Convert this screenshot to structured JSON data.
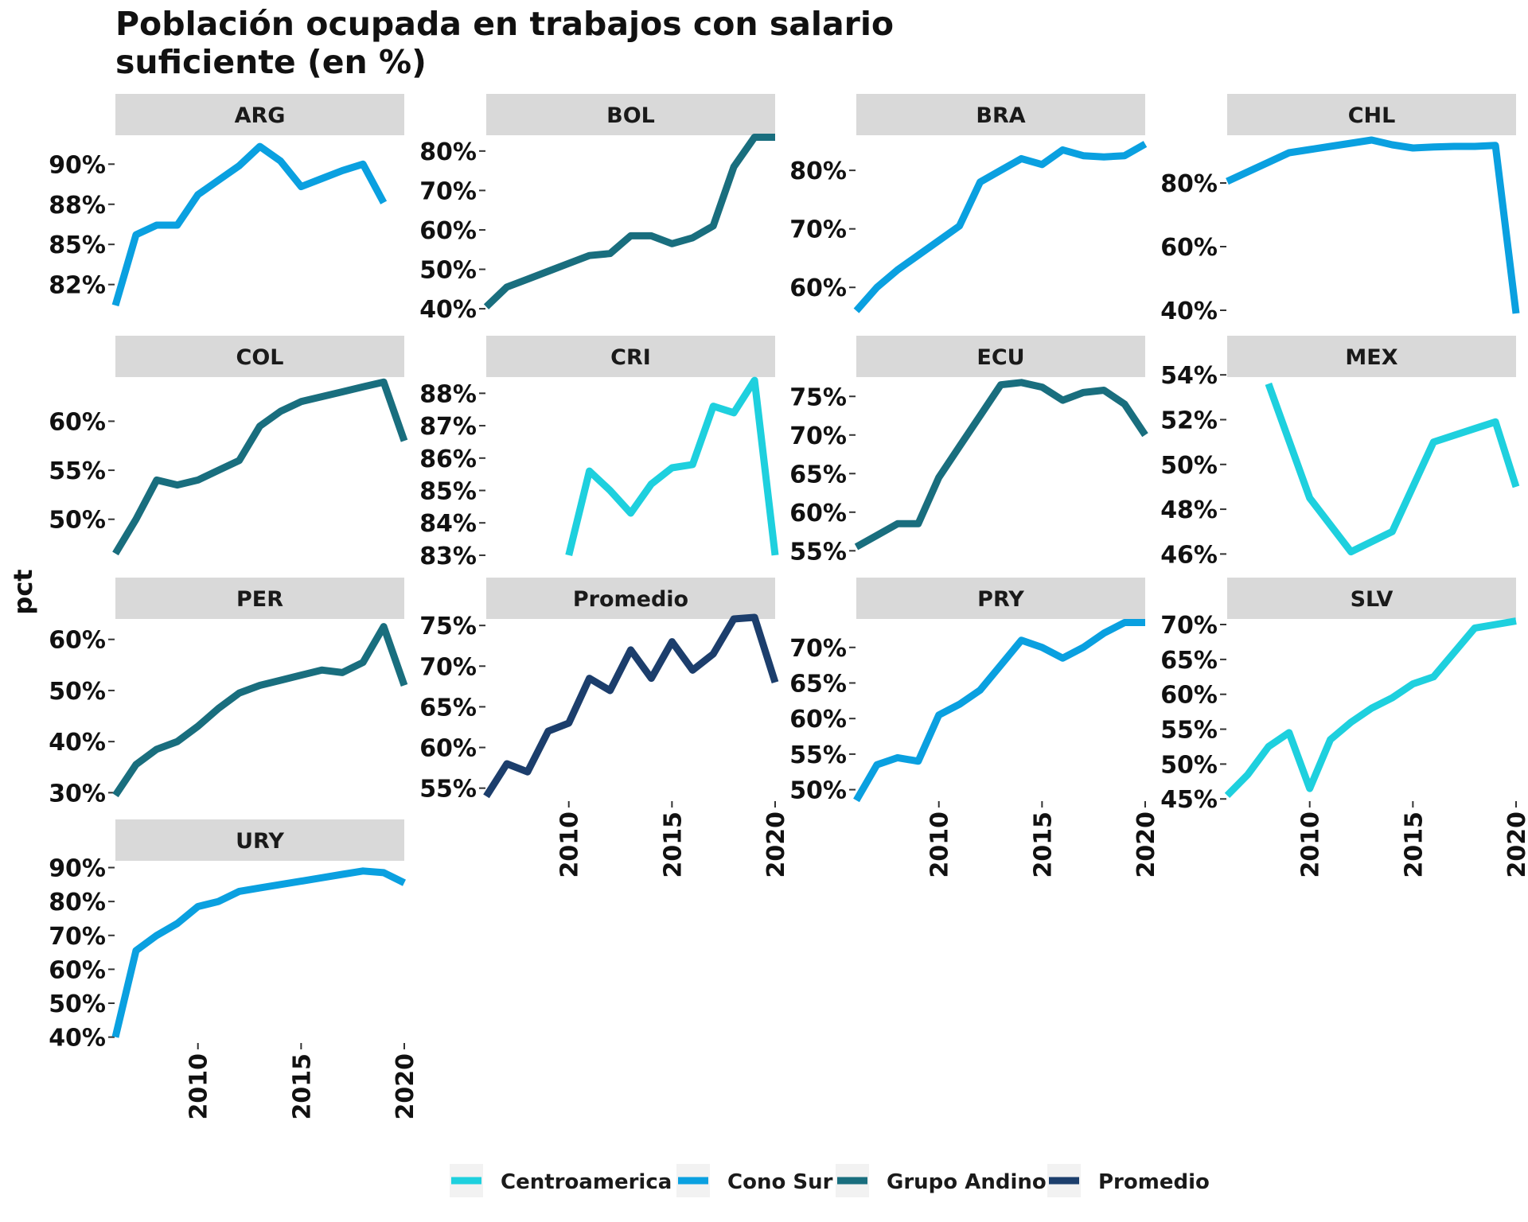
{
  "title_lines": [
    "Población ocupada en trabajos con salario",
    "suficiente (en %)"
  ],
  "chart_data": {
    "type": "line",
    "title": "Población ocupada en trabajos con salario suficiente (en %)",
    "ylabel": "pct",
    "xlabel": "",
    "x_ticks": [
      2010,
      2015,
      2020
    ],
    "xlim": [
      2006,
      2020
    ],
    "group_colors": {
      "Centroamerica": "#1ED0DE",
      "Cono Sur": "#0AA0E0",
      "Grupo Andino": "#196E7E",
      "Promedio": "#1C3E6C"
    },
    "legend": [
      {
        "label": "Centroamerica",
        "color": "#1ED0DE"
      },
      {
        "label": "Cono Sur",
        "color": "#0AA0E0"
      },
      {
        "label": "Grupo Andino",
        "color": "#196E7E"
      },
      {
        "label": "Promedio",
        "color": "#1C3E6C"
      }
    ],
    "legend_position": "bottom",
    "panels": [
      {
        "name": "ARG",
        "group": "Cono Sur",
        "ylim": [
          80.5,
          91.8
        ],
        "yticks": [
          {
            "v": 82.5,
            "label": "82%"
          },
          {
            "v": 85,
            "label": "85%"
          },
          {
            "v": 87.5,
            "label": "88%"
          },
          {
            "v": 90,
            "label": "90%"
          }
        ],
        "x": [
          2006,
          2007,
          2008,
          2009,
          2010,
          2011,
          2012,
          2013,
          2014,
          2015,
          2016,
          2017,
          2018,
          2019
        ],
        "y": [
          81.2,
          85.6,
          86.2,
          86.2,
          88.1,
          89.0,
          89.9,
          91.1,
          90.2,
          88.6,
          89.1,
          89.6,
          90.0,
          87.6
        ]
      },
      {
        "name": "BOL",
        "group": "Grupo Andino",
        "ylim": [
          38,
          84
        ],
        "yticks": [
          {
            "v": 40,
            "label": "40%"
          },
          {
            "v": 50,
            "label": "50%"
          },
          {
            "v": 60,
            "label": "60%"
          },
          {
            "v": 70,
            "label": "70%"
          },
          {
            "v": 80,
            "label": "80%"
          }
        ],
        "x": [
          2006,
          2007,
          2008,
          2009,
          2010,
          2011,
          2012,
          2013,
          2014,
          2015,
          2016,
          2017,
          2018,
          2019,
          2020
        ],
        "y": [
          40.5,
          45.5,
          47.5,
          49.5,
          51.5,
          53.5,
          54.0,
          58.5,
          58.5,
          56.5,
          58.0,
          61.0,
          76.0,
          83.5,
          83.5
        ]
      },
      {
        "name": "BRA",
        "group": "Cono Sur",
        "ylim": [
          55,
          86
        ],
        "yticks": [
          {
            "v": 60,
            "label": "60%"
          },
          {
            "v": 70,
            "label": "70%"
          },
          {
            "v": 80,
            "label": "80%"
          }
        ],
        "x": [
          2006,
          2007,
          2008,
          2009,
          2010,
          2011,
          2012,
          2013,
          2014,
          2015,
          2016,
          2017,
          2018,
          2019,
          2020
        ],
        "y": [
          56.0,
          60.0,
          63.0,
          65.5,
          68.0,
          70.5,
          78.0,
          80.0,
          82.0,
          81.0,
          83.5,
          82.5,
          82.3,
          82.5,
          84.5
        ]
      },
      {
        "name": "CHL",
        "group": "Cono Sur",
        "ylim": [
          38,
          95
        ],
        "yticks": [
          {
            "v": 40,
            "label": "40%"
          },
          {
            "v": 60,
            "label": "60%"
          },
          {
            "v": 80,
            "label": "80%"
          }
        ],
        "x": [
          2006,
          2007,
          2008,
          2009,
          2010,
          2011,
          2012,
          2013,
          2014,
          2015,
          2016,
          2017,
          2018,
          2019,
          2020
        ],
        "y": [
          80.5,
          83.5,
          86.5,
          89.5,
          90.5,
          91.5,
          92.5,
          93.5,
          92.0,
          91.0,
          91.3,
          91.5,
          91.5,
          91.8,
          39.0
        ]
      },
      {
        "name": "COL",
        "group": "Grupo Andino",
        "ylim": [
          46,
          64.5
        ],
        "yticks": [
          {
            "v": 50,
            "label": "50%"
          },
          {
            "v": 55,
            "label": "55%"
          },
          {
            "v": 60,
            "label": "60%"
          }
        ],
        "x": [
          2006,
          2007,
          2008,
          2009,
          2010,
          2011,
          2012,
          2013,
          2014,
          2015,
          2016,
          2017,
          2018,
          2019,
          2020
        ],
        "y": [
          46.5,
          50.0,
          54.0,
          53.5,
          54.0,
          55.0,
          56.0,
          59.5,
          61.0,
          62.0,
          62.5,
          63.0,
          63.5,
          64.0,
          58.0
        ]
      },
      {
        "name": "CRI",
        "group": "Centroamerica",
        "ylim": [
          82.9,
          88.5
        ],
        "yticks": [
          {
            "v": 83,
            "label": "83%"
          },
          {
            "v": 84,
            "label": "84%"
          },
          {
            "v": 85,
            "label": "85%"
          },
          {
            "v": 86,
            "label": "86%"
          },
          {
            "v": 87,
            "label": "87%"
          },
          {
            "v": 88,
            "label": "88%"
          }
        ],
        "x": [
          2010,
          2011,
          2012,
          2013,
          2014,
          2015,
          2016,
          2017,
          2018,
          2019,
          2020
        ],
        "y": [
          83.0,
          85.6,
          85.0,
          84.3,
          85.2,
          85.7,
          85.8,
          87.6,
          87.4,
          88.4,
          83.0
        ]
      },
      {
        "name": "ECU",
        "group": "Grupo Andino",
        "ylim": [
          54,
          77.5
        ],
        "yticks": [
          {
            "v": 55,
            "label": "55%"
          },
          {
            "v": 60,
            "label": "60%"
          },
          {
            "v": 65,
            "label": "65%"
          },
          {
            "v": 70,
            "label": "70%"
          },
          {
            "v": 75,
            "label": "75%"
          }
        ],
        "x": [
          2006,
          2007,
          2008,
          2009,
          2010,
          2011,
          2012,
          2013,
          2014,
          2015,
          2016,
          2017,
          2018,
          2019,
          2020
        ],
        "y": [
          55.5,
          57.0,
          58.5,
          58.5,
          64.5,
          68.5,
          72.5,
          76.5,
          76.8,
          76.2,
          74.5,
          75.5,
          75.8,
          74.0,
          70.0
        ]
      },
      {
        "name": "MEX",
        "group": "Centroamerica",
        "ylim": [
          45.8,
          53.9
        ],
        "yticks": [
          {
            "v": 46,
            "label": "46%"
          },
          {
            "v": 48,
            "label": "48%"
          },
          {
            "v": 50,
            "label": "50%"
          },
          {
            "v": 52,
            "label": "52%"
          },
          {
            "v": 54,
            "label": "54%"
          }
        ],
        "x": [
          2008,
          2010,
          2012,
          2014,
          2016,
          2018,
          2019,
          2020
        ],
        "y": [
          53.6,
          48.5,
          46.1,
          47.0,
          51.0,
          51.6,
          51.9,
          49.0
        ]
      },
      {
        "name": "PER",
        "group": "Grupo Andino",
        "ylim": [
          28.5,
          64
        ],
        "yticks": [
          {
            "v": 30,
            "label": "30%"
          },
          {
            "v": 40,
            "label": "40%"
          },
          {
            "v": 50,
            "label": "50%"
          },
          {
            "v": 60,
            "label": "60%"
          }
        ],
        "x": [
          2006,
          2007,
          2008,
          2009,
          2010,
          2011,
          2012,
          2013,
          2014,
          2015,
          2016,
          2017,
          2018,
          2019,
          2020
        ],
        "y": [
          29.5,
          35.5,
          38.5,
          40.0,
          43.0,
          46.5,
          49.5,
          51.0,
          52.0,
          53.0,
          54.0,
          53.5,
          55.5,
          62.5,
          51.0
        ]
      },
      {
        "name": "Promedio",
        "group": "Promedio",
        "ylim": [
          53.5,
          75.8
        ],
        "yticks": [
          {
            "v": 55,
            "label": "55%"
          },
          {
            "v": 60,
            "label": "60%"
          },
          {
            "v": 65,
            "label": "65%"
          },
          {
            "v": 70,
            "label": "70%"
          },
          {
            "v": 75,
            "label": "75%"
          }
        ],
        "x": [
          2006,
          2007,
          2008,
          2009,
          2010,
          2011,
          2012,
          2013,
          2014,
          2015,
          2016,
          2017,
          2018,
          2019,
          2020
        ],
        "y": [
          54.0,
          58.0,
          57.0,
          62.0,
          63.0,
          68.5,
          67.0,
          72.0,
          68.5,
          73.0,
          69.5,
          71.5,
          75.8,
          76.0,
          68.0
        ]
      },
      {
        "name": "PRY",
        "group": "Cono Sur",
        "ylim": [
          48.5,
          74
        ],
        "yticks": [
          {
            "v": 50,
            "label": "50%"
          },
          {
            "v": 55,
            "label": "55%"
          },
          {
            "v": 60,
            "label": "60%"
          },
          {
            "v": 65,
            "label": "65%"
          },
          {
            "v": 70,
            "label": "70%"
          }
        ],
        "x": [
          2006,
          2007,
          2008,
          2009,
          2010,
          2011,
          2012,
          2013,
          2014,
          2015,
          2016,
          2017,
          2018,
          2019,
          2020
        ],
        "y": [
          48.5,
          53.5,
          54.5,
          54.0,
          60.5,
          62.0,
          64.0,
          67.5,
          71.0,
          70.0,
          68.5,
          70.0,
          72.0,
          73.5,
          73.5
        ]
      },
      {
        "name": "SLV",
        "group": "Centroamerica",
        "ylim": [
          44.8,
          70.8
        ],
        "yticks": [
          {
            "v": 45,
            "label": "45%"
          },
          {
            "v": 50,
            "label": "50%"
          },
          {
            "v": 55,
            "label": "55%"
          },
          {
            "v": 60,
            "label": "60%"
          },
          {
            "v": 65,
            "label": "65%"
          },
          {
            "v": 70,
            "label": "70%"
          }
        ],
        "x": [
          2006,
          2007,
          2008,
          2009,
          2010,
          2011,
          2012,
          2013,
          2014,
          2015,
          2016,
          2017,
          2018,
          2019,
          2020
        ],
        "y": [
          45.5,
          48.5,
          52.5,
          54.5,
          46.5,
          53.5,
          56.0,
          58.0,
          59.5,
          61.5,
          62.5,
          66.0,
          69.5,
          70.0,
          70.5
        ]
      },
      {
        "name": "URY",
        "group": "Cono Sur",
        "ylim": [
          38.5,
          92
        ],
        "yticks": [
          {
            "v": 40,
            "label": "40%"
          },
          {
            "v": 50,
            "label": "50%"
          },
          {
            "v": 60,
            "label": "60%"
          },
          {
            "v": 70,
            "label": "70%"
          },
          {
            "v": 80,
            "label": "80%"
          },
          {
            "v": 90,
            "label": "90%"
          }
        ],
        "x": [
          2006,
          2007,
          2008,
          2009,
          2010,
          2011,
          2012,
          2013,
          2014,
          2015,
          2016,
          2017,
          2018,
          2019,
          2020
        ],
        "y": [
          40.0,
          65.5,
          70.0,
          73.5,
          78.5,
          80.0,
          83.0,
          84.0,
          85.0,
          86.0,
          87.0,
          88.0,
          89.0,
          88.5,
          85.5
        ]
      }
    ]
  }
}
